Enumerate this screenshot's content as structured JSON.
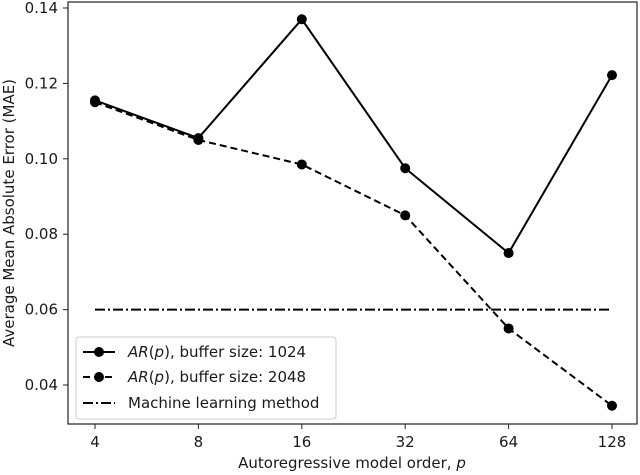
{
  "chart_data": {
    "type": "line",
    "title": "",
    "xlabel": "Autoregressive model order, p",
    "ylabel": "Average Mean Absolute Error (MAE)",
    "x": [
      4,
      8,
      16,
      32,
      64,
      128
    ],
    "x_scale": "log2",
    "x_tick_labels": [
      "4",
      "8",
      "16",
      "32",
      "64",
      "128"
    ],
    "y_ticks": [
      0.04,
      0.06,
      0.08,
      0.1,
      0.12,
      0.14
    ],
    "y_tick_labels": [
      "0.04",
      "0.06",
      "0.08",
      "0.10",
      "0.12",
      "0.14"
    ],
    "ylim": [
      0.0315,
      0.1405
    ],
    "grid": false,
    "legend_position": "lower left",
    "series": [
      {
        "name": "AR(p), buffer size: 1024",
        "name_italic_part": "AR",
        "name_p": "p",
        "name_suffix": ", buffer size: 1024",
        "style": "solid",
        "marker": "circle",
        "color": "#000000",
        "values": [
          0.1155,
          0.1055,
          0.137,
          0.0975,
          0.075,
          0.1222
        ]
      },
      {
        "name": "AR(p), buffer size: 2048",
        "name_italic_part": "AR",
        "name_p": "p",
        "name_suffix": ", buffer size: 2048",
        "style": "dashed",
        "marker": "circle",
        "color": "#000000",
        "values": [
          0.115,
          0.105,
          0.0985,
          0.085,
          0.055,
          0.0345
        ]
      },
      {
        "name": "Machine learning method",
        "style": "dashdot",
        "marker": "none",
        "color": "#000000",
        "values": [
          0.06,
          0.06,
          0.06,
          0.06,
          0.06,
          0.06
        ]
      }
    ]
  },
  "labels": {
    "xlabel_prefix": "Autoregressive model order, ",
    "xlabel_var": "p",
    "ylabel": "Average Mean Absolute Error (MAE)",
    "legend": [
      {
        "italic": "AR",
        "paren_open": "(",
        "var": "p",
        "paren_close": ")",
        "rest": ", buffer size: 1024"
      },
      {
        "italic": "AR",
        "paren_open": "(",
        "var": "p",
        "paren_close": ")",
        "rest": ", buffer size: 2048"
      },
      {
        "plain": "Machine learning method"
      }
    ]
  }
}
